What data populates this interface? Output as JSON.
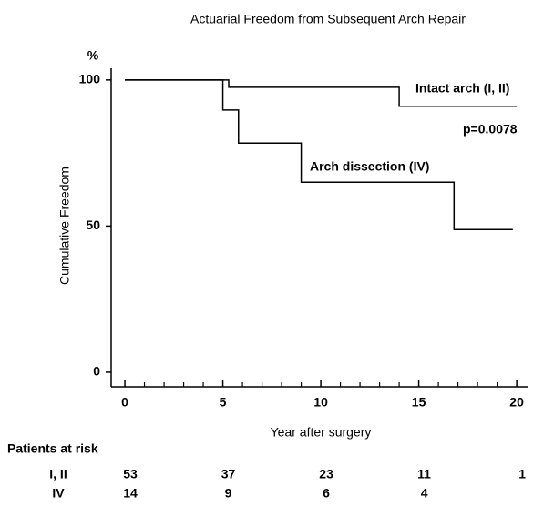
{
  "chart_data": {
    "type": "step",
    "title": "Actuarial Freedom from Subsequent Arch Repair",
    "xlabel": "Year after surgery",
    "ylabel": "Cumulative Freedom",
    "yunit": "%",
    "xlim": [
      -0.7,
      20.6
    ],
    "ylim": [
      -5,
      104
    ],
    "xticks": [
      0,
      5,
      10,
      15,
      20
    ],
    "xminorticks": [
      1,
      2,
      3,
      4,
      6,
      7,
      8,
      9,
      11,
      12,
      13,
      14,
      16,
      17,
      18,
      19
    ],
    "yticks": [
      0,
      50,
      100
    ],
    "series": [
      {
        "name": "Intact arch (I, II)",
        "color": "#000000",
        "x": [
          0,
          5.3,
          14,
          20
        ],
        "values": [
          100,
          97.5,
          91,
          91
        ]
      },
      {
        "name": "Arch dissection (IV)",
        "color": "#000000",
        "x": [
          0,
          5,
          5.8,
          9,
          16.8,
          19.8
        ],
        "values": [
          100,
          89.7,
          78.4,
          65,
          48.8,
          48.8
        ]
      }
    ],
    "annotation": "p=0.0078",
    "risk_table": {
      "title": "Patients at risk",
      "rows": [
        {
          "label": "I, II",
          "values": [
            53,
            37,
            23,
            11,
            1
          ]
        },
        {
          "label": "IV",
          "values": [
            14,
            9,
            6,
            4
          ]
        }
      ]
    }
  }
}
